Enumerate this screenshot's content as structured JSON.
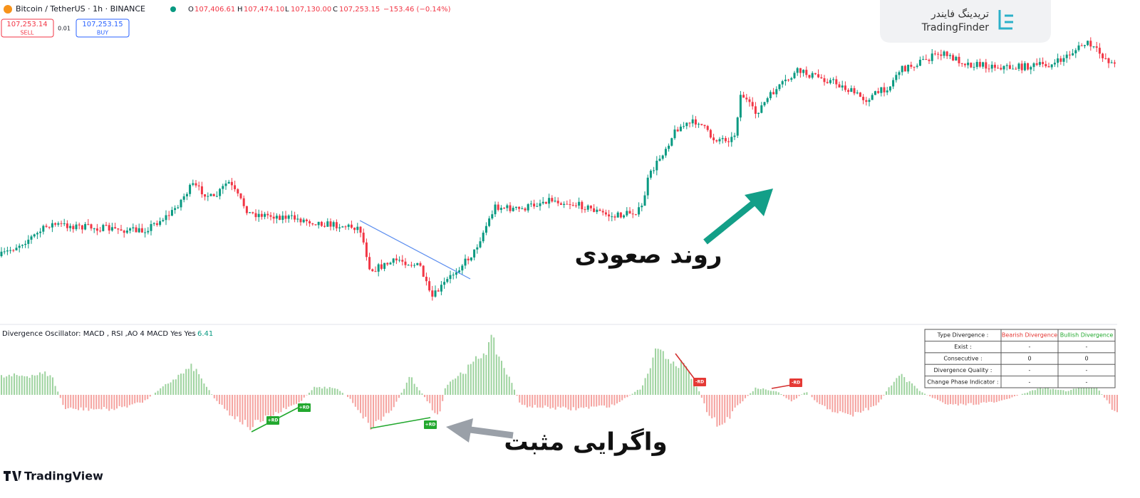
{
  "header": {
    "symbol": "Bitcoin / TetherUS · 1h · BINANCE",
    "open_label": "O",
    "open": "107,406.61",
    "high_label": "H",
    "high": "107,474.10",
    "low_label": "L",
    "low": "107,130.00",
    "close_label": "C",
    "close": "107,253.15",
    "change": "−153.46 (−0.14%)"
  },
  "trade": {
    "sell_price": "107,253.14",
    "sell": "SELL",
    "spread": "0.01",
    "buy_price": "107,253.15",
    "buy": "BUY"
  },
  "logo": {
    "name_fa": "تریدینگ فایندر",
    "name": "TradingFinder"
  },
  "annotations": {
    "uptrend": "روند صعودی",
    "divergence": "واگرایی مثبت"
  },
  "indicator": {
    "label": "Divergence Oscillator: MACD , RSI ,AO 4 MACD Yes Yes",
    "value": "6.41",
    "signals": [
      "+RD",
      "+RD",
      "+RD",
      "-RD",
      "-RD"
    ]
  },
  "table": {
    "header": [
      "Type Divergence :",
      "Bearish Divergence",
      "Bullish Divergence"
    ],
    "rows": [
      [
        "Exist :",
        "-",
        "-"
      ],
      [
        "Consecutive :",
        "0",
        "0"
      ],
      [
        "Divergence Quality :",
        "-",
        "-"
      ],
      [
        "Change Phase Indicator :",
        "-",
        "-"
      ]
    ]
  },
  "footer": {
    "brand": "TradingView"
  }
}
